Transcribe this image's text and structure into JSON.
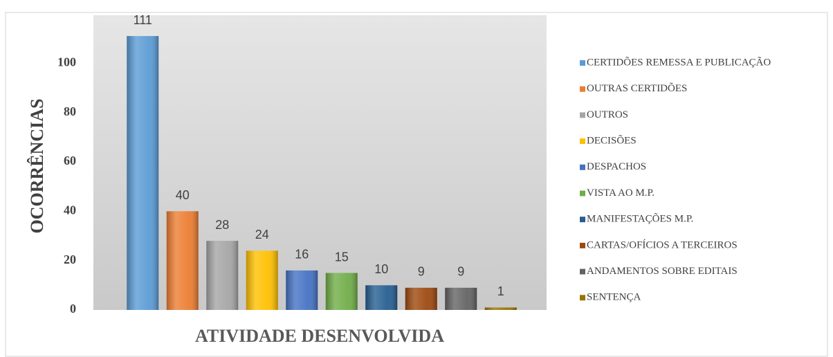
{
  "chart_data": {
    "type": "bar",
    "y_label": "OCORRÊNCIAS",
    "x_label": "ATIVIDADE DESENVOLVIDA",
    "categories": [
      "CERTIDÕES REMESSA E PUBLICAÇÃO",
      "OUTRAS CERTIDÕES",
      "OUTROS",
      "DECISÕES",
      "DESPACHOS",
      "VISTA AO M.P.",
      "MANIFESTAÇÕES M.P.",
      "CARTAS/OFÍCIOS A TERCEIROS",
      "ANDAMENTOS SOBRE EDITAIS",
      "SENTENÇA"
    ],
    "values": [
      111,
      40,
      28,
      24,
      16,
      15,
      10,
      9,
      9,
      1
    ],
    "colors": [
      "#5b9bd5",
      "#ed7d31",
      "#a5a5a5",
      "#ffc000",
      "#4472c4",
      "#70ad47",
      "#255e91",
      "#9e480e",
      "#636363",
      "#997300"
    ],
    "ylim": [
      0,
      120
    ],
    "yticks": [
      0,
      20,
      40,
      60,
      80,
      100
    ],
    "grid": false,
    "legend": "right"
  }
}
